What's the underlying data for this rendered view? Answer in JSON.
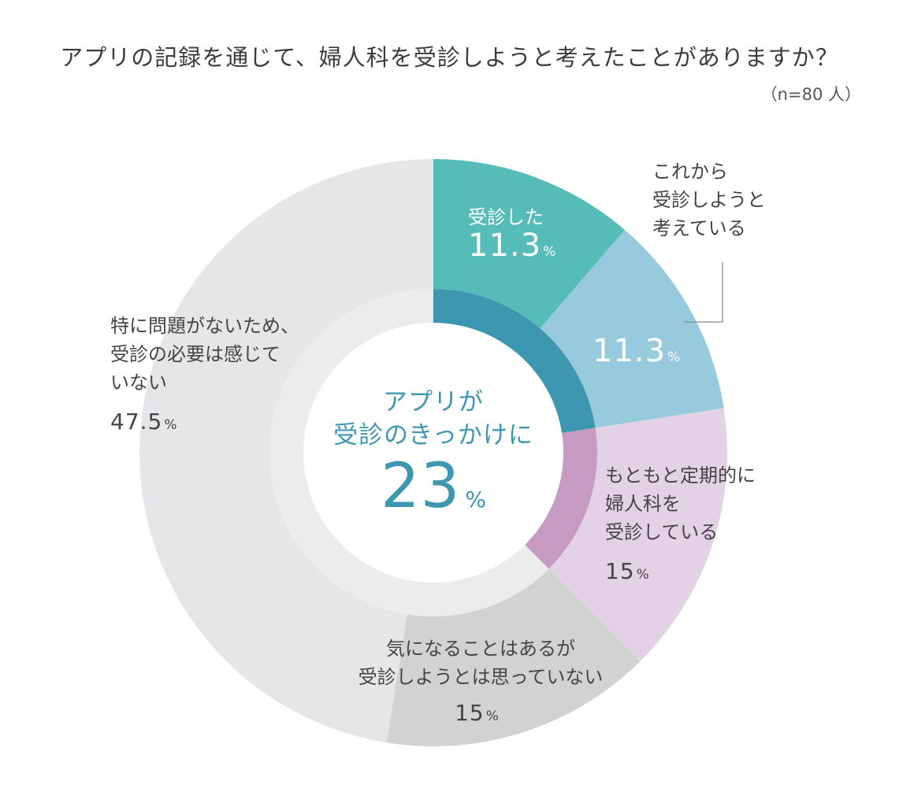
{
  "title": "アプリの記録を通じて、婦人科を受診しようと考えたことがありますか？",
  "sample_note": "（n=80 人）",
  "center": {
    "line1": "アプリが",
    "line2": "受診のきっかけに",
    "value": "23",
    "unit": "%"
  },
  "colors": {
    "consulted": "#56bcb8",
    "planning": "#97cadd",
    "regular": "#e3d2e6",
    "concerned": "#d2d2d2",
    "no_problem": "#e6e6e8",
    "inner_app": "#3e97b0",
    "inner_regular": "#c79bc1",
    "inner_rest": "#ececed",
    "center_text": "#3e97b0"
  },
  "chart_data": {
    "type": "pie",
    "categories": [
      "受診した",
      "これから受診しようと考えている",
      "もともと定期的に婦人科を受診している",
      "気になることはあるが受診しようとは思っていない",
      "特に問題がないため、受診の必要は感じていない"
    ],
    "values": [
      11.3,
      11.3,
      15,
      15,
      47.5
    ],
    "unit": "%",
    "title": "アプリの記録を通じて、婦人科を受診しようと考えたことがありますか？"
  },
  "labels": {
    "consulted": {
      "text": "受診した",
      "value": "11.3",
      "unit": "%"
    },
    "planning": {
      "line1": "これから",
      "line2": "受診しようと",
      "line3": "考えている",
      "value": "11.3",
      "unit": "%"
    },
    "regular": {
      "line1": "もともと定期的に",
      "line2": "婦人科を",
      "line3": "受診している",
      "value": "15",
      "unit": "%"
    },
    "concerned": {
      "line1": "気になることはあるが",
      "line2": "受診しようとは思っていない",
      "value": "15",
      "unit": "%"
    },
    "no_problem": {
      "line1": "特に問題がないため、",
      "line2": "受診の必要は感じて",
      "line3": "いない",
      "value": "47.5",
      "unit": "%"
    }
  }
}
